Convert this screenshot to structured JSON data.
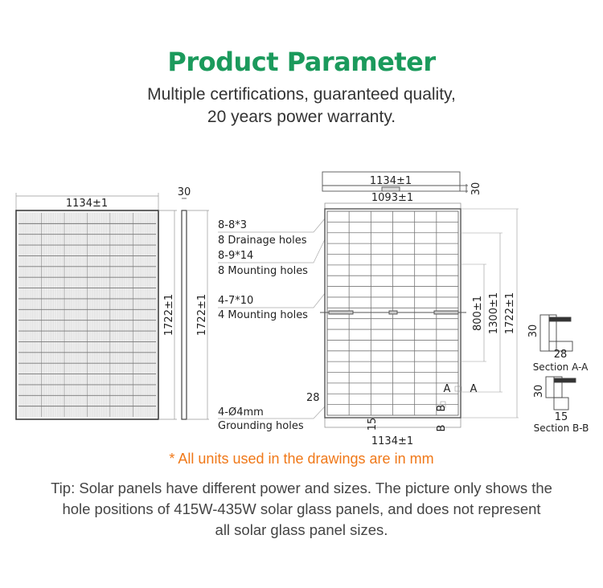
{
  "header": {
    "title": "Product Parameter",
    "subtitle_line1": "Multiple certifications, guaranteed quality,",
    "subtitle_line2": "20 years power warranty."
  },
  "front_view": {
    "width_label": "1134±1",
    "height_label": "1722±1"
  },
  "side_view": {
    "thickness_label": "30",
    "height_label": "1722±1"
  },
  "callouts": {
    "drainage_size": "8-8*3",
    "drainage_label": "8 Drainage holes",
    "mounting_size": "8-9*14",
    "mounting_label": "8 Mounting holes",
    "mounting4_size": "4-7*10",
    "mounting4_label": "4 Mounting holes",
    "grounding_size": "4-Ø4mm",
    "grounding_label": "Grounding holes"
  },
  "back_view": {
    "top_width": "1134±1",
    "top_thickness": "30",
    "inner_width": "1093±1",
    "dim_800": "800±1",
    "dim_1300": "1300±1",
    "dim_1722": "1722±1",
    "dim_28": "28",
    "dim_15": "15",
    "section_a": "A",
    "section_b": "B",
    "bottom_width": "1134±1"
  },
  "sections": {
    "aa_height": "30",
    "aa_width": "28",
    "aa_label": "Section A-A",
    "bb_height": "30",
    "bb_width": "15",
    "bb_label": "Section B-B"
  },
  "note": "* All units used in the drawings are in mm",
  "tip": {
    "line1": "Tip: Solar panels have different power and sizes. The picture only shows the",
    "line2": "hole positions of 415W-435W solar glass panels, and does not represent",
    "line3": "all solar glass panel sizes."
  },
  "colors": {
    "title": "#1b9a5c",
    "note": "#f07818"
  }
}
